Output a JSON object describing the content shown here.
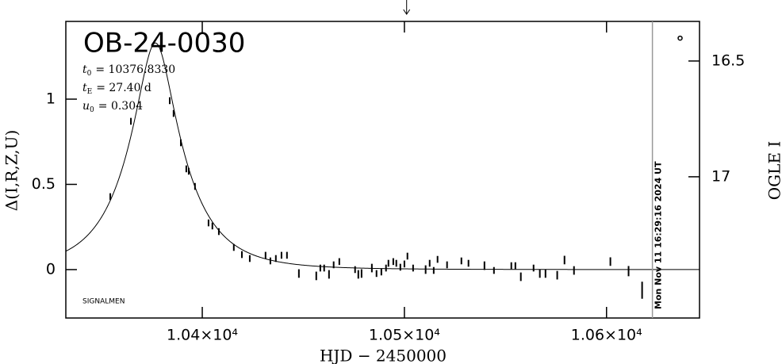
{
  "chart_data": {
    "type": "errorbar",
    "title": "OB-24-0030",
    "xlabel": "HJD − 2450000",
    "ylabel": "Δ(I,R,Z,U)",
    "y2label": "OGLE I",
    "signature": "SIGNALMEN",
    "timestamp": {
      "x": 10622.7,
      "label": "Mon Nov 11 16:29:16 2024 UT"
    },
    "arrow_x": 10501.1,
    "marker": {
      "x": 10636.4,
      "y": 1.358
    },
    "model": [
      {
        "symbol": "t",
        "sub": "0",
        "value": 10376.833,
        "label": "= 10376.8330"
      },
      {
        "symbol": "t",
        "sub": "E",
        "value": 27.4,
        "label": "= 27.40  d"
      },
      {
        "symbol": "u",
        "sub": "0",
        "value": 0.304,
        "label": "= 0.304"
      }
    ],
    "xlim": [
      10332.5,
      10646
    ],
    "ylim": [
      -0.284,
      1.456
    ],
    "y2lim": [
      17.61,
      16.329
    ],
    "xticks": [
      {
        "value": 10400,
        "label": "1.04×10⁴"
      },
      {
        "value": 10500,
        "label": "1.05×10⁴"
      },
      {
        "value": 10600,
        "label": "1.06×10⁴"
      }
    ],
    "yticks": [
      0,
      0.5,
      1
    ],
    "y2ticks": [
      16.5,
      17
    ],
    "series": [
      {
        "color": "#000000",
        "x": [
          10354.5,
          10364.7,
          10383.9,
          10385.8,
          10389.4,
          10392.1,
          10393.3,
          10396.4,
          10403.1,
          10405.0,
          10408.2,
          10415.6,
          10419.6,
          10423.5,
          10431.3,
          10433.7,
          10436.4,
          10439.2,
          10441.9,
          10447.8,
          10456.4,
          10458.4,
          10460.3,
          10462.7,
          10465.0,
          10467.8,
          10475.6,
          10477.2,
          10478.8,
          10483.9,
          10486.2,
          10488.6,
          10490.9,
          10492.1,
          10494.5,
          10496.0,
          10498.0,
          10500.0,
          10501.5,
          10504.3,
          10510.5,
          10512.5,
          10514.5,
          10516.4,
          10521.1,
          10528.2,
          10531.7,
          10539.6,
          10544.3,
          10552.9,
          10554.9,
          10557.6,
          10563.9,
          10567.0,
          10569.8,
          10575.6,
          10579.2,
          10583.9,
          10601.9,
          10610.9,
          10617.6
        ],
        "values": [
          0.428,
          0.87,
          0.991,
          0.916,
          0.744,
          0.591,
          0.577,
          0.488,
          0.274,
          0.256,
          0.223,
          0.13,
          0.088,
          0.065,
          0.084,
          0.051,
          0.065,
          0.084,
          0.084,
          -0.023,
          -0.037,
          0.009,
          0.009,
          -0.028,
          0.028,
          0.047,
          0.0,
          -0.028,
          -0.023,
          0.009,
          -0.023,
          -0.014,
          0.009,
          0.037,
          0.047,
          0.037,
          0.014,
          0.033,
          0.079,
          0.009,
          0.0,
          0.037,
          -0.005,
          0.06,
          0.028,
          0.051,
          0.037,
          0.023,
          -0.005,
          0.023,
          0.023,
          -0.042,
          0.009,
          -0.023,
          -0.023,
          -0.033,
          0.056,
          -0.005,
          0.047,
          -0.009,
          -0.121
        ],
        "errors": [
          0.02,
          0.02,
          0.02,
          0.02,
          0.02,
          0.02,
          0.02,
          0.02,
          0.02,
          0.02,
          0.02,
          0.02,
          0.02,
          0.02,
          0.02,
          0.02,
          0.02,
          0.02,
          0.02,
          0.025,
          0.025,
          0.02,
          0.02,
          0.025,
          0.02,
          0.02,
          0.02,
          0.025,
          0.025,
          0.025,
          0.02,
          0.02,
          0.02,
          0.02,
          0.02,
          0.02,
          0.02,
          0.02,
          0.02,
          0.02,
          0.025,
          0.02,
          0.02,
          0.02,
          0.02,
          0.02,
          0.02,
          0.025,
          0.02,
          0.02,
          0.02,
          0.025,
          0.02,
          0.025,
          0.025,
          0.025,
          0.025,
          0.025,
          0.025,
          0.03,
          0.05
        ]
      }
    ]
  }
}
